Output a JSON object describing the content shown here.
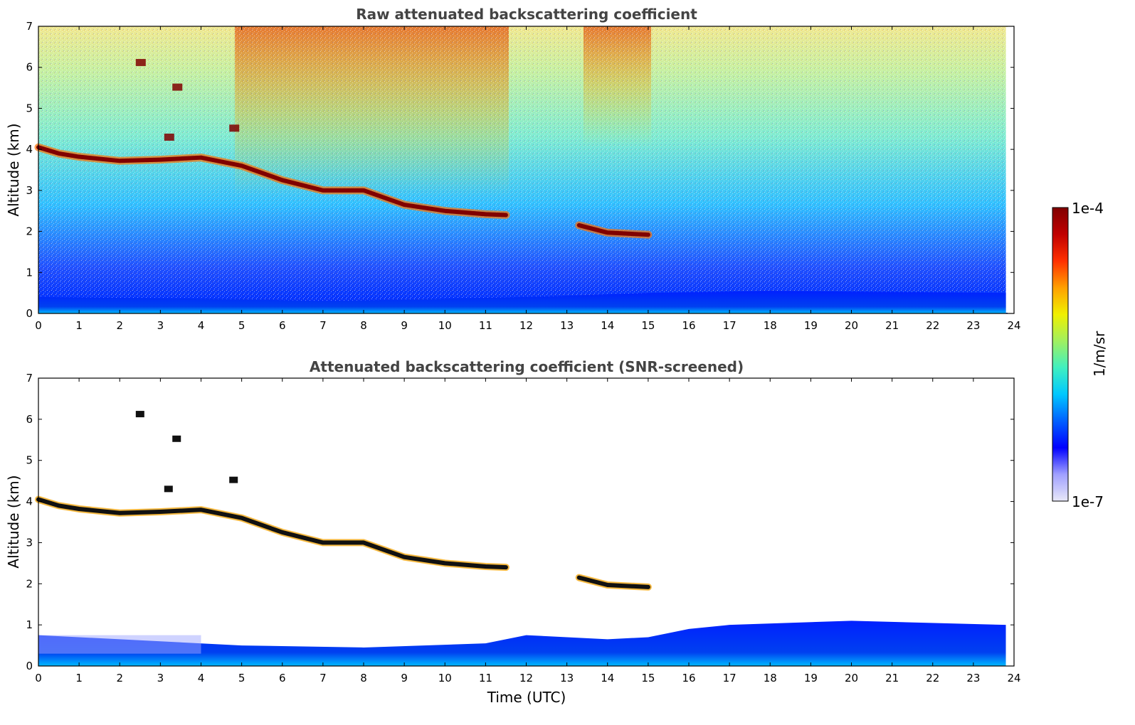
{
  "chart_data": [
    {
      "type": "heatmap",
      "title": "Raw attenuated backscattering coefficient",
      "xlabel": "",
      "ylabel": "Altitude (km)",
      "xlim": [
        0,
        24
      ],
      "ylim": [
        0,
        7
      ],
      "xticks": [
        "0",
        "1",
        "2",
        "3",
        "4",
        "5",
        "6",
        "7",
        "8",
        "9",
        "10",
        "11",
        "12",
        "13",
        "14",
        "15",
        "16",
        "17",
        "18",
        "19",
        "20",
        "21",
        "22",
        "23",
        "24"
      ],
      "yticks": [
        "0",
        "1",
        "2",
        "3",
        "4",
        "5",
        "6",
        "7"
      ],
      "data_end_hour": 23.8,
      "features": [
        {
          "name": "cloud layer",
          "points": [
            [
              0,
              4.05
            ],
            [
              0.5,
              3.9
            ],
            [
              1,
              3.82
            ],
            [
              2,
              3.72
            ],
            [
              3,
              3.75
            ],
            [
              4,
              3.8
            ],
            [
              5,
              3.6
            ],
            [
              6,
              3.25
            ],
            [
              7,
              3.0
            ],
            [
              8,
              3.0
            ],
            [
              9,
              2.65
            ],
            [
              10,
              2.5
            ],
            [
              11,
              2.42
            ],
            [
              11.5,
              2.4
            ]
          ]
        },
        {
          "name": "cloud layer 2",
          "points": [
            [
              13.3,
              2.15
            ],
            [
              14,
              1.97
            ],
            [
              15,
              1.92
            ]
          ]
        },
        {
          "name": "high cloud fragments",
          "points": [
            [
              2.5,
              6.1
            ],
            [
              3.4,
              5.5
            ],
            [
              4.8,
              4.5
            ],
            [
              3.2,
              4.28
            ]
          ]
        },
        {
          "name": "boundary layer",
          "points": [
            [
              0,
              0.4
            ],
            [
              5,
              0.35
            ],
            [
              7,
              0.3
            ],
            [
              12,
              0.4
            ],
            [
              15,
              0.5
            ],
            [
              18,
              0.55
            ],
            [
              23.8,
              0.5
            ]
          ]
        }
      ]
    },
    {
      "type": "heatmap",
      "title": "Attenuated backscattering coefficient (SNR-screened)",
      "xlabel": "Time (UTC)",
      "ylabel": "Altitude (km)",
      "xlim": [
        0,
        24
      ],
      "ylim": [
        0,
        7
      ],
      "xticks": [
        "0",
        "1",
        "2",
        "3",
        "4",
        "5",
        "6",
        "7",
        "8",
        "9",
        "10",
        "11",
        "12",
        "13",
        "14",
        "15",
        "16",
        "17",
        "18",
        "19",
        "20",
        "21",
        "22",
        "23",
        "24"
      ],
      "yticks": [
        "0",
        "1",
        "2",
        "3",
        "4",
        "5",
        "6",
        "7"
      ],
      "data_end_hour": 23.8,
      "boundary_layer_top_km": [
        [
          0,
          0.75
        ],
        [
          5,
          0.5
        ],
        [
          8,
          0.45
        ],
        [
          11,
          0.55
        ],
        [
          12,
          0.75
        ],
        [
          14,
          0.65
        ],
        [
          15,
          0.7
        ],
        [
          16,
          0.9
        ],
        [
          17,
          1.0
        ],
        [
          20,
          1.1
        ],
        [
          23.8,
          1.0
        ]
      ]
    }
  ],
  "colorbar": {
    "label": "1/m/sr",
    "max_label": "1e-4",
    "min_label": "1e-7",
    "colormap": [
      "#e8e8f8",
      "#a0a0ff",
      "#0000ff",
      "#0060ff",
      "#00c8ff",
      "#40f0c0",
      "#a0f060",
      "#f0f000",
      "#ffa000",
      "#ff3000",
      "#c00000",
      "#800000"
    ]
  },
  "colors": {
    "cloud_core": "#800000",
    "screened_cloud": "#111111",
    "boundary_layer": "#0030ee",
    "axis": "#000000",
    "title": "#444444"
  }
}
